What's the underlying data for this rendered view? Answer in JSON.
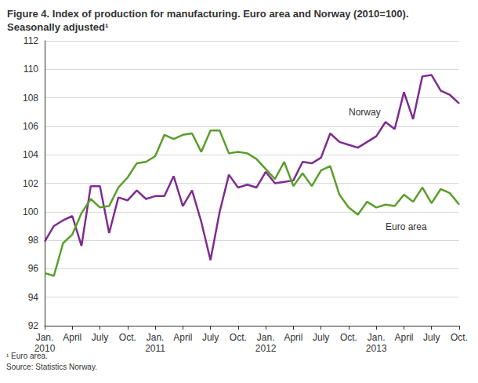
{
  "chart_data": {
    "type": "line",
    "title": "Figure 4. Index of production for manufacturing. Euro area and Norway (2010=100). Seasonally adjusted¹",
    "footnotes": [
      "¹ Euro area.",
      "Source: Statistics Norway."
    ],
    "categories": [
      "Jan.\n2010",
      null,
      null,
      "April",
      null,
      null,
      "July",
      null,
      null,
      "Oct.",
      null,
      null,
      "Jan.\n2011",
      null,
      null,
      "April",
      null,
      null,
      "July",
      null,
      null,
      "Oct.",
      null,
      null,
      "Jan.\n2012",
      null,
      null,
      "April",
      null,
      null,
      "July",
      null,
      null,
      "Oct.",
      null,
      null,
      "Jan.\n2013",
      null,
      null,
      "April",
      null,
      null,
      "July",
      null,
      null,
      "Oct."
    ],
    "series": [
      {
        "name": "Norway",
        "color": "#7d2c8f",
        "values": [
          97.9,
          99.0,
          99.4,
          99.7,
          97.6,
          101.8,
          101.8,
          98.5,
          101.0,
          100.8,
          101.5,
          100.9,
          101.1,
          101.1,
          102.5,
          100.4,
          101.5,
          99.3,
          96.6,
          100.0,
          102.6,
          101.7,
          101.9,
          101.7,
          102.8,
          102.0,
          102.1,
          102.2,
          103.5,
          103.4,
          103.8,
          105.5,
          104.9,
          104.7,
          104.5,
          104.9,
          105.3,
          106.3,
          105.8,
          108.4,
          106.5,
          109.5,
          109.6,
          108.5,
          108.2,
          107.6
        ]
      },
      {
        "name": "Euro area",
        "color": "#5a9e2a",
        "values": [
          95.7,
          95.5,
          97.8,
          98.4,
          99.9,
          100.9,
          100.3,
          100.4,
          101.7,
          102.4,
          103.4,
          103.5,
          103.9,
          105.4,
          105.1,
          105.4,
          105.5,
          104.2,
          105.7,
          105.7,
          104.1,
          104.2,
          104.1,
          103.7,
          103.0,
          102.3,
          103.5,
          101.8,
          102.7,
          101.8,
          102.9,
          103.2,
          101.2,
          100.3,
          99.8,
          100.7,
          100.3,
          100.5,
          100.4,
          101.2,
          100.7,
          101.7,
          100.6,
          101.6,
          101.3,
          100.5
        ]
      }
    ],
    "ylim": [
      92,
      112
    ],
    "yticks": [
      92,
      94,
      96,
      98,
      100,
      102,
      104,
      106,
      108,
      110,
      112
    ],
    "grid": true
  }
}
